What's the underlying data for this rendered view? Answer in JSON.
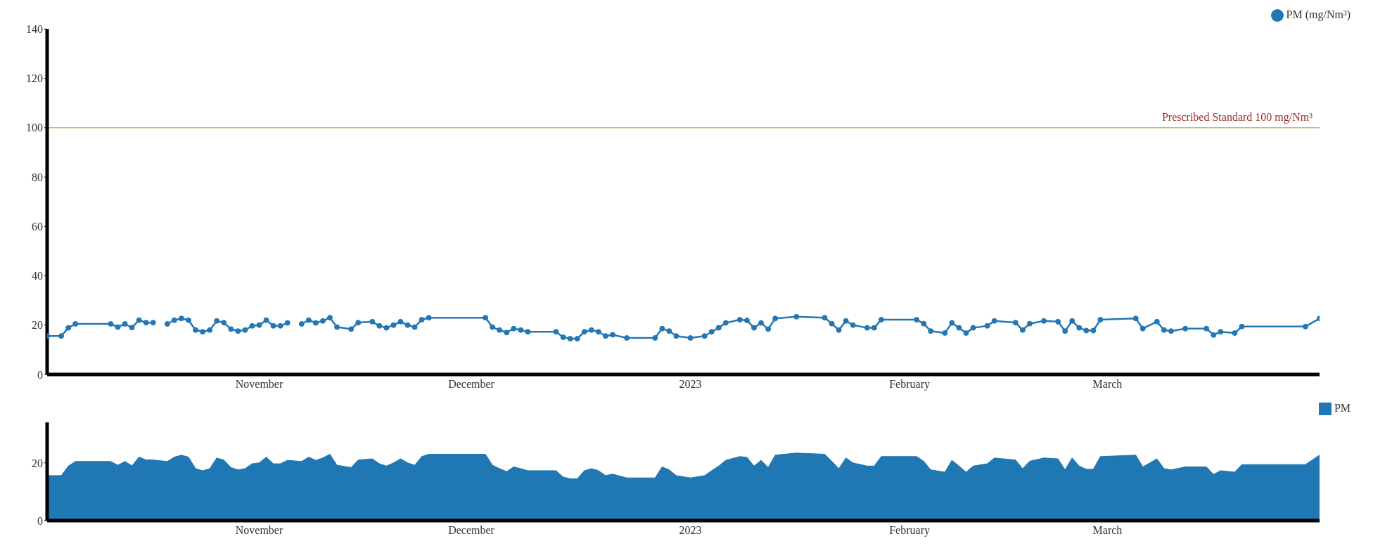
{
  "chart_data": [
    {
      "type": "line",
      "x": [
        "2022-10-02",
        "2022-10-04",
        "2022-10-05",
        "2022-10-06",
        "2022-10-11",
        "2022-10-12",
        "2022-10-13",
        "2022-10-14",
        "2022-10-15",
        "2022-10-16",
        "2022-10-17",
        "2022-10-18",
        "2022-10-19",
        "2022-10-20",
        "2022-10-21",
        "2022-10-22",
        "2022-10-23",
        "2022-10-24",
        "2022-10-25",
        "2022-10-26",
        "2022-10-27",
        "2022-10-28",
        "2022-10-29",
        "2022-10-30",
        "2022-10-31",
        "2022-11-01",
        "2022-11-02",
        "2022-11-03",
        "2022-11-04",
        "2022-11-05",
        "2022-11-06",
        "2022-11-07",
        "2022-11-08",
        "2022-11-09",
        "2022-11-10",
        "2022-11-11",
        "2022-11-12",
        "2022-11-14",
        "2022-11-15",
        "2022-11-17",
        "2022-11-18",
        "2022-11-19",
        "2022-11-20",
        "2022-11-21",
        "2022-11-22",
        "2022-11-23",
        "2022-11-24",
        "2022-11-25",
        "2022-12-03",
        "2022-12-04",
        "2022-12-05",
        "2022-12-06",
        "2022-12-07",
        "2022-12-08",
        "2022-12-09",
        "2022-12-13",
        "2022-12-14",
        "2022-12-15",
        "2022-12-16",
        "2022-12-17",
        "2022-12-18",
        "2022-12-19",
        "2022-12-20",
        "2022-12-21",
        "2022-12-23",
        "2022-12-27",
        "2022-12-28",
        "2022-12-29",
        "2022-12-30",
        "2023-01-01",
        "2023-01-03",
        "2023-01-04",
        "2023-01-05",
        "2023-01-06",
        "2023-01-08",
        "2023-01-09",
        "2023-01-10",
        "2023-01-11",
        "2023-01-12",
        "2023-01-13",
        "2023-01-16",
        "2023-01-20",
        "2023-01-21",
        "2023-01-22",
        "2023-01-23",
        "2023-01-24",
        "2023-01-26",
        "2023-01-27",
        "2023-01-28",
        "2023-02-02",
        "2023-02-03",
        "2023-02-04",
        "2023-02-06",
        "2023-02-07",
        "2023-02-08",
        "2023-02-09",
        "2023-02-10",
        "2023-02-12",
        "2023-02-13",
        "2023-02-16",
        "2023-02-17",
        "2023-02-18",
        "2023-02-20",
        "2023-02-22",
        "2023-02-23",
        "2023-02-24",
        "2023-02-25",
        "2023-02-26",
        "2023-02-27",
        "2023-02-28",
        "2023-03-05",
        "2023-03-06",
        "2023-03-08",
        "2023-03-09",
        "2023-03-10",
        "2023-03-12",
        "2023-03-15",
        "2023-03-16",
        "2023-03-17",
        "2023-03-19",
        "2023-03-20",
        "2023-03-29",
        "2023-03-31"
      ],
      "series": [
        {
          "name": "PM (mg/Nm³)",
          "color": "#2377b4",
          "values": [
            15.6,
            15.6,
            18.9,
            20.5,
            20.5,
            19.2,
            20.5,
            19,
            22,
            21,
            21,
            null,
            20.5,
            22,
            22.7,
            22,
            18,
            17.3,
            18,
            21.7,
            21,
            18.4,
            17.6,
            18,
            19.7,
            20,
            22,
            19.7,
            19.7,
            20.9,
            null,
            20.5,
            22,
            20.9,
            21.7,
            23,
            19.2,
            18.4,
            21,
            21.4,
            19.7,
            18.9,
            20,
            21.4,
            20,
            19.2,
            22.2,
            23,
            23,
            19.2,
            18,
            17,
            18.6,
            18,
            17.3,
            17.3,
            15.1,
            14.5,
            14.5,
            17.3,
            18,
            17.3,
            15.6,
            16.1,
            14.8,
            14.8,
            18.6,
            17.6,
            15.6,
            14.8,
            15.6,
            17.3,
            18.9,
            20.9,
            22.2,
            21.9,
            18.9,
            20.9,
            18.4,
            22.7,
            23.4,
            23,
            20.6,
            18,
            21.7,
            20,
            18.9,
            18.9,
            22.2,
            22.2,
            20.6,
            17.6,
            16.8,
            20.9,
            18.9,
            16.8,
            18.9,
            19.7,
            21.7,
            21,
            18,
            20.6,
            21.7,
            21.4,
            17.6,
            21.7,
            18.9,
            17.8,
            17.8,
            22.2,
            22.7,
            18.6,
            21.4,
            18,
            17.6,
            18.6,
            18.6,
            16,
            17.3,
            16.8,
            19.4,
            19.4,
            22.7
          ]
        }
      ],
      "xlim": [
        "2022-10-02",
        "2023-03-31"
      ],
      "xticks": [
        {
          "value": "2022-11-01",
          "label": "November"
        },
        {
          "value": "2022-12-01",
          "label": "December"
        },
        {
          "value": "2023-01-01",
          "label": "2023"
        },
        {
          "value": "2023-02-01",
          "label": "February"
        },
        {
          "value": "2023-03-01",
          "label": "March"
        }
      ],
      "ylim": [
        0,
        140
      ],
      "yticks": [
        0,
        20,
        40,
        60,
        80,
        100,
        120,
        140
      ],
      "ref_lines": [
        {
          "axis": "y",
          "value": 100,
          "label": "Prescribed Standard 100 mg/Nm³",
          "color": "#c9b777"
        }
      ],
      "marker": "circle",
      "grid": false,
      "legend": "top right"
    },
    {
      "type": "area",
      "x": [
        "2022-10-02",
        "2022-10-04",
        "2022-10-05",
        "2022-10-06",
        "2022-10-11",
        "2022-10-12",
        "2022-10-13",
        "2022-10-14",
        "2022-10-15",
        "2022-10-16",
        "2022-10-17",
        "2022-10-19",
        "2022-10-20",
        "2022-10-21",
        "2022-10-22",
        "2022-10-23",
        "2022-10-24",
        "2022-10-25",
        "2022-10-26",
        "2022-10-27",
        "2022-10-28",
        "2022-10-29",
        "2022-10-30",
        "2022-10-31",
        "2022-11-01",
        "2022-11-02",
        "2022-11-03",
        "2022-11-04",
        "2022-11-05",
        "2022-11-07",
        "2022-11-08",
        "2022-11-09",
        "2022-11-10",
        "2022-11-11",
        "2022-11-12",
        "2022-11-14",
        "2022-11-15",
        "2022-11-17",
        "2022-11-18",
        "2022-11-19",
        "2022-11-20",
        "2022-11-21",
        "2022-11-22",
        "2022-11-23",
        "2022-11-24",
        "2022-11-25",
        "2022-12-03",
        "2022-12-04",
        "2022-12-05",
        "2022-12-06",
        "2022-12-07",
        "2022-12-08",
        "2022-12-09",
        "2022-12-13",
        "2022-12-14",
        "2022-12-15",
        "2022-12-16",
        "2022-12-17",
        "2022-12-18",
        "2022-12-19",
        "2022-12-20",
        "2022-12-21",
        "2022-12-23",
        "2022-12-27",
        "2022-12-28",
        "2022-12-29",
        "2022-12-30",
        "2023-01-01",
        "2023-01-03",
        "2023-01-04",
        "2023-01-05",
        "2023-01-06",
        "2023-01-08",
        "2023-01-09",
        "2023-01-10",
        "2023-01-11",
        "2023-01-12",
        "2023-01-13",
        "2023-01-16",
        "2023-01-20",
        "2023-01-21",
        "2023-01-22",
        "2023-01-23",
        "2023-01-24",
        "2023-01-26",
        "2023-01-27",
        "2023-01-28",
        "2023-02-02",
        "2023-02-03",
        "2023-02-04",
        "2023-02-06",
        "2023-02-07",
        "2023-02-08",
        "2023-02-09",
        "2023-02-10",
        "2023-02-12",
        "2023-02-13",
        "2023-02-16",
        "2023-02-17",
        "2023-02-18",
        "2023-02-20",
        "2023-02-22",
        "2023-02-23",
        "2023-02-24",
        "2023-02-25",
        "2023-02-26",
        "2023-02-27",
        "2023-02-28",
        "2023-03-05",
        "2023-03-06",
        "2023-03-08",
        "2023-03-09",
        "2023-03-10",
        "2023-03-12",
        "2023-03-15",
        "2023-03-16",
        "2023-03-17",
        "2023-03-19",
        "2023-03-20",
        "2023-03-29",
        "2023-03-31"
      ],
      "series": [
        {
          "name": "PM",
          "color": "#1f77b4",
          "values": [
            15.6,
            15.6,
            18.9,
            20.5,
            20.5,
            19.2,
            20.5,
            19,
            22,
            21,
            21,
            20.5,
            22,
            22.7,
            22,
            18,
            17.3,
            18,
            21.7,
            21,
            18.4,
            17.6,
            18,
            19.7,
            20,
            22,
            19.7,
            19.7,
            20.9,
            20.5,
            22,
            20.9,
            21.7,
            23,
            19.2,
            18.4,
            21,
            21.4,
            19.7,
            18.9,
            20,
            21.4,
            20,
            19.2,
            22.2,
            23,
            23,
            19.2,
            18,
            17,
            18.6,
            18,
            17.3,
            17.3,
            15.1,
            14.5,
            14.5,
            17.3,
            18,
            17.3,
            15.6,
            16.1,
            14.8,
            14.8,
            18.6,
            17.6,
            15.6,
            14.8,
            15.6,
            17.3,
            18.9,
            20.9,
            22.2,
            21.9,
            18.9,
            20.9,
            18.4,
            22.7,
            23.4,
            23,
            20.6,
            18,
            21.7,
            20,
            18.9,
            18.9,
            22.2,
            22.2,
            20.6,
            17.6,
            16.8,
            20.9,
            18.9,
            16.8,
            18.9,
            19.7,
            21.7,
            21,
            18,
            20.6,
            21.7,
            21.4,
            17.6,
            21.7,
            18.9,
            17.8,
            17.8,
            22.2,
            22.7,
            18.6,
            21.4,
            18,
            17.6,
            18.6,
            18.6,
            16,
            17.3,
            16.8,
            19.4,
            19.4,
            22.7
          ]
        }
      ],
      "xlim": [
        "2022-10-02",
        "2023-03-31"
      ],
      "xticks": [
        {
          "value": "2022-11-01",
          "label": "November"
        },
        {
          "value": "2022-12-01",
          "label": "December"
        },
        {
          "value": "2023-01-01",
          "label": "2023"
        },
        {
          "value": "2023-02-01",
          "label": "February"
        },
        {
          "value": "2023-03-01",
          "label": "March"
        }
      ],
      "ylim": [
        0,
        34
      ],
      "yticks": [
        0,
        20
      ],
      "grid": false,
      "legend": "top right"
    }
  ]
}
